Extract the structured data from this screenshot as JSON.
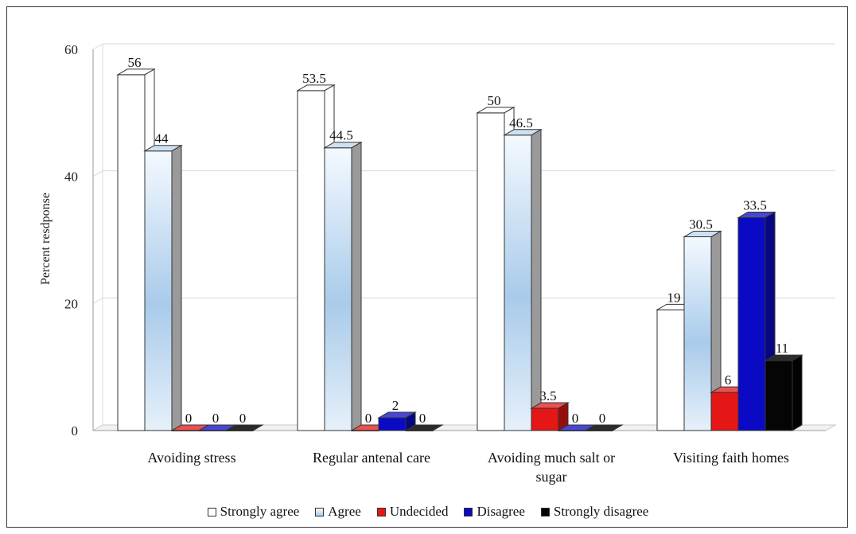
{
  "chart_data": {
    "type": "bar",
    "ylabel": "Percent resdponse",
    "xlabel": "",
    "ylim": [
      0,
      60
    ],
    "yticks": [
      0,
      20,
      40,
      60
    ],
    "grid": true,
    "legend_position": "bottom",
    "categories": [
      [
        "Avoiding stress"
      ],
      [
        "Regular antenal care"
      ],
      [
        "Avoiding much salt or",
        "sugar"
      ],
      [
        "Visiting faith homes"
      ]
    ],
    "series": [
      {
        "name": "Strongly agree",
        "color": "#ffffff",
        "values": [
          56,
          53.5,
          50,
          19
        ],
        "labels": [
          "56",
          "53.5",
          "50",
          "19"
        ]
      },
      {
        "name": "Agree",
        "color": "#bcd7ef",
        "values": [
          44,
          44.5,
          46.5,
          30.5
        ],
        "labels": [
          "44",
          "44.5",
          "46.5",
          "30.5"
        ]
      },
      {
        "name": "Undecided",
        "color": "#e51616",
        "values": [
          0,
          0,
          3.5,
          6
        ],
        "labels": [
          "0",
          "0",
          "3.5",
          "6"
        ]
      },
      {
        "name": "Disagree",
        "color": "#0a0ac4",
        "values": [
          0,
          2,
          0,
          33.5
        ],
        "labels": [
          "0",
          "2",
          "0",
          "33.5"
        ]
      },
      {
        "name": "Strongly disagree",
        "color": "#050505",
        "values": [
          0,
          0,
          0,
          11
        ],
        "labels": [
          "0",
          "0",
          "0",
          "11"
        ]
      }
    ]
  }
}
